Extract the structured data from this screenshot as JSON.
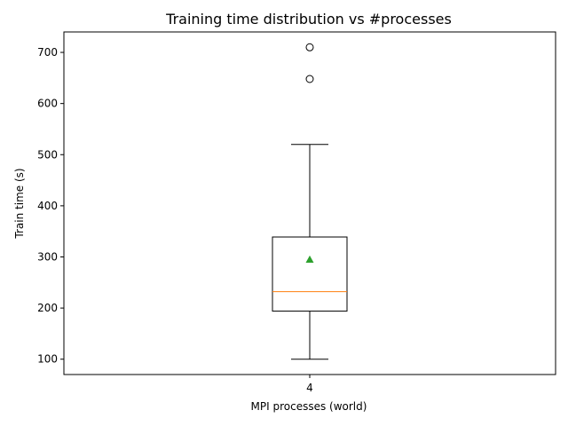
{
  "chart_data": {
    "type": "box",
    "title": "Training time distribution vs #processes",
    "xlabel": "MPI processes (world)",
    "ylabel": "Train time (s)",
    "categories": [
      "4"
    ],
    "ylim": [
      70,
      740
    ],
    "yticks": [
      100,
      200,
      300,
      400,
      500,
      600,
      700
    ],
    "grid": false,
    "boxes": [
      {
        "category": "4",
        "whisker_low": 100,
        "q1": 194,
        "median": 232,
        "q3": 339,
        "whisker_high": 520,
        "mean": 295,
        "outliers": [
          648,
          710
        ]
      }
    ],
    "colors": {
      "box": "#000000",
      "median": "#ff7f0e",
      "mean": "#2ca02c",
      "outlier": "#000000"
    }
  }
}
